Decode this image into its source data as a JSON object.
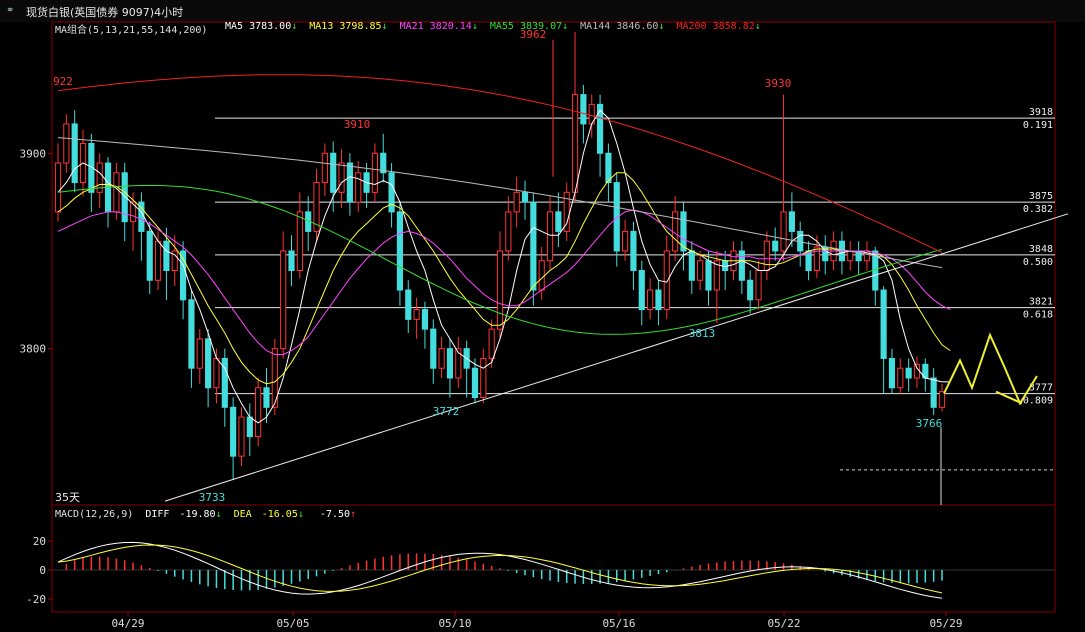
{
  "window": {
    "title": "现货白银(英国债券 9097)4小时",
    "logo_icon": "chain-link-icon"
  },
  "ma_legend": {
    "group_label": "MA组合(5,13,21,55,144,200)",
    "items": [
      {
        "name": "MA5",
        "value": "3783.00",
        "arrow": "↓",
        "color": "#ffffff"
      },
      {
        "name": "MA13",
        "value": "3798.85",
        "arrow": "↓",
        "color": "#ffff33"
      },
      {
        "name": "MA21",
        "value": "3820.14",
        "arrow": "↓",
        "color": "#ff44ff"
      },
      {
        "name": "MA55",
        "value": "3839.07",
        "arrow": "↓",
        "color": "#33dd33"
      },
      {
        "name": "MA144",
        "value": "3846.60",
        "arrow": "↓",
        "color": "#bbbbbb"
      },
      {
        "name": "MA200",
        "value": "3858.82",
        "arrow": "↓",
        "color": "#ee2222"
      }
    ]
  },
  "period_label": "35天",
  "macd_legend": {
    "label": "MACD(12,26,9)",
    "diff_label": "DIFF",
    "diff_value": "-19.80",
    "diff_arrow": "↓",
    "dea_label": "DEA",
    "dea_value": "-16.05",
    "dea_arrow": "↓",
    "macd_value": "-7.50",
    "macd_arrow": "↑"
  },
  "chart_data": {
    "type": "candlestick",
    "y_ticks": [
      3800,
      3900
    ],
    "ylim": [
      3720,
      3960
    ],
    "x_ticks": [
      "04/29",
      "05/05",
      "05/10",
      "05/16",
      "05/22",
      "05/29"
    ],
    "fib_levels": [
      {
        "price": 3918,
        "ratio": "0.191"
      },
      {
        "price": 3875,
        "ratio": "0.382"
      },
      {
        "price": 3848,
        "ratio": "0.500"
      },
      {
        "price": 3821,
        "ratio": "0.618"
      },
      {
        "price": 3777,
        "ratio": "0.809"
      }
    ],
    "annotations": [
      {
        "text": "922",
        "color": "#ff3333"
      },
      {
        "text": "3910",
        "color": "#ff3333"
      },
      {
        "text": "3962",
        "color": "#ff3333"
      },
      {
        "text": "3930",
        "color": "#ff3333"
      },
      {
        "text": "3733",
        "color": "#44dddd"
      },
      {
        "text": "3772",
        "color": "#44dddd"
      },
      {
        "text": "3813",
        "color": "#44dddd"
      },
      {
        "text": "3766",
        "color": "#44dddd"
      }
    ],
    "candles": [
      [
        3870,
        3895,
        3905,
        3865
      ],
      [
        3895,
        3915,
        3920,
        3890
      ],
      [
        3915,
        3885,
        3922,
        3880
      ],
      [
        3885,
        3905,
        3912,
        3878
      ],
      [
        3905,
        3880,
        3910,
        3870
      ],
      [
        3880,
        3895,
        3900,
        3872
      ],
      [
        3895,
        3870,
        3898,
        3862
      ],
      [
        3870,
        3890,
        3895,
        3866
      ],
      [
        3890,
        3865,
        3895,
        3855
      ],
      [
        3865,
        3875,
        3880,
        3850
      ],
      [
        3875,
        3860,
        3880,
        3845
      ],
      [
        3860,
        3835,
        3865,
        3828
      ],
      [
        3835,
        3855,
        3860,
        3830
      ],
      [
        3855,
        3840,
        3862,
        3825
      ],
      [
        3840,
        3850,
        3858,
        3832
      ],
      [
        3850,
        3825,
        3855,
        3815
      ],
      [
        3825,
        3790,
        3830,
        3780
      ],
      [
        3790,
        3805,
        3810,
        3782
      ],
      [
        3805,
        3780,
        3810,
        3770
      ],
      [
        3780,
        3795,
        3800,
        3772
      ],
      [
        3795,
        3770,
        3800,
        3760
      ],
      [
        3770,
        3745,
        3775,
        3733
      ],
      [
        3745,
        3765,
        3770,
        3740
      ],
      [
        3765,
        3755,
        3772,
        3745
      ],
      [
        3755,
        3780,
        3785,
        3750
      ],
      [
        3780,
        3770,
        3790,
        3762
      ],
      [
        3770,
        3800,
        3805,
        3766
      ],
      [
        3800,
        3850,
        3860,
        3795
      ],
      [
        3850,
        3840,
        3858,
        3832
      ],
      [
        3840,
        3870,
        3880,
        3836
      ],
      [
        3870,
        3860,
        3878,
        3850
      ],
      [
        3860,
        3885,
        3892,
        3855
      ],
      [
        3885,
        3900,
        3905,
        3878
      ],
      [
        3900,
        3880,
        3906,
        3870
      ],
      [
        3880,
        3895,
        3902,
        3872
      ],
      [
        3895,
        3875,
        3900,
        3868
      ],
      [
        3875,
        3890,
        3896,
        3870
      ],
      [
        3890,
        3880,
        3895,
        3872
      ],
      [
        3880,
        3900,
        3905,
        3875
      ],
      [
        3900,
        3890,
        3910,
        3885
      ],
      [
        3890,
        3870,
        3895,
        3862
      ],
      [
        3870,
        3830,
        3875,
        3822
      ],
      [
        3830,
        3815,
        3835,
        3808
      ],
      [
        3815,
        3820,
        3826,
        3805
      ],
      [
        3820,
        3810,
        3824,
        3800
      ],
      [
        3810,
        3790,
        3815,
        3782
      ],
      [
        3790,
        3800,
        3806,
        3785
      ],
      [
        3800,
        3785,
        3805,
        3775
      ],
      [
        3785,
        3800,
        3806,
        3780
      ],
      [
        3800,
        3790,
        3804,
        3775
      ],
      [
        3790,
        3775,
        3795,
        3772
      ],
      [
        3775,
        3795,
        3800,
        3772
      ],
      [
        3795,
        3810,
        3815,
        3790
      ],
      [
        3810,
        3850,
        3860,
        3805
      ],
      [
        3850,
        3870,
        3878,
        3845
      ],
      [
        3870,
        3880,
        3888,
        3862
      ],
      [
        3880,
        3875,
        3886,
        3866
      ],
      [
        3875,
        3830,
        3880,
        3822
      ],
      [
        3830,
        3845,
        3852,
        3825
      ],
      [
        3845,
        3870,
        3878,
        3840
      ],
      [
        3870,
        3860,
        3880,
        3852
      ],
      [
        3860,
        3880,
        3885,
        3855
      ],
      [
        3880,
        3930,
        3962,
        3875
      ],
      [
        3930,
        3915,
        3935,
        3905
      ],
      [
        3915,
        3925,
        3930,
        3908
      ],
      [
        3925,
        3900,
        3930,
        3888
      ],
      [
        3900,
        3885,
        3905,
        3875
      ],
      [
        3885,
        3850,
        3890,
        3842
      ],
      [
        3850,
        3860,
        3866,
        3845
      ],
      [
        3860,
        3840,
        3865,
        3830
      ],
      [
        3840,
        3820,
        3845,
        3812
      ],
      [
        3820,
        3830,
        3836,
        3815
      ],
      [
        3830,
        3820,
        3835,
        3812
      ],
      [
        3820,
        3850,
        3858,
        3815
      ],
      [
        3850,
        3870,
        3878,
        3845
      ],
      [
        3870,
        3850,
        3875,
        3840
      ],
      [
        3850,
        3835,
        3855,
        3828
      ],
      [
        3835,
        3845,
        3850,
        3830
      ],
      [
        3845,
        3830,
        3850,
        3822
      ],
      [
        3830,
        3845,
        3850,
        3813
      ],
      [
        3845,
        3840,
        3850,
        3830
      ],
      [
        3840,
        3850,
        3855,
        3835
      ],
      [
        3850,
        3835,
        3855,
        3828
      ],
      [
        3835,
        3825,
        3840,
        3818
      ],
      [
        3825,
        3840,
        3845,
        3820
      ],
      [
        3840,
        3855,
        3860,
        3835
      ],
      [
        3855,
        3850,
        3862,
        3845
      ],
      [
        3850,
        3870,
        3930,
        3845
      ],
      [
        3870,
        3860,
        3880,
        3852
      ],
      [
        3860,
        3850,
        3865,
        3842
      ],
      [
        3850,
        3840,
        3855,
        3835
      ],
      [
        3840,
        3852,
        3858,
        3836
      ],
      [
        3852,
        3845,
        3858,
        3838
      ],
      [
        3845,
        3855,
        3860,
        3840
      ],
      [
        3855,
        3845,
        3860,
        3838
      ],
      [
        3845,
        3850,
        3855,
        3840
      ],
      [
        3850,
        3845,
        3855,
        3838
      ],
      [
        3845,
        3850,
        3855,
        3840
      ],
      [
        3850,
        3830,
        3852,
        3822
      ],
      [
        3830,
        3795,
        3832,
        3777
      ],
      [
        3795,
        3780,
        3800,
        3777
      ],
      [
        3780,
        3790,
        3795,
        3777
      ],
      [
        3790,
        3785,
        3795,
        3778
      ],
      [
        3785,
        3792,
        3796,
        3780
      ],
      [
        3792,
        3785,
        3795,
        3778
      ],
      [
        3785,
        3770,
        3790,
        3766
      ],
      [
        3770,
        3778,
        3782,
        3768
      ]
    ],
    "ma_series": {
      "MA5": [
        3880,
        3885,
        3892,
        3895,
        3893,
        3890,
        3885,
        3882,
        3878,
        3874,
        3870,
        3862,
        3855,
        3850,
        3848,
        3843,
        3830,
        3820,
        3808,
        3795,
        3790,
        3780,
        3772,
        3765,
        3762,
        3765,
        3772,
        3785,
        3802,
        3820,
        3840,
        3855,
        3868,
        3878,
        3885,
        3888,
        3887,
        3885,
        3884,
        3886,
        3884,
        3875,
        3862,
        3850,
        3840,
        3825,
        3812,
        3805,
        3798,
        3795,
        3792,
        3790,
        3793,
        3805,
        3820,
        3840,
        3856,
        3862,
        3860,
        3858,
        3858,
        3864,
        3880,
        3900,
        3915,
        3922,
        3918,
        3905,
        3890,
        3872,
        3855,
        3843,
        3835,
        3834,
        3842,
        3848,
        3850,
        3848,
        3845,
        3843,
        3842,
        3843,
        3845,
        3843,
        3840,
        3840,
        3842,
        3848,
        3855,
        3858,
        3858,
        3855,
        3850,
        3848,
        3849,
        3850,
        3850,
        3849,
        3848,
        3845,
        3835,
        3815,
        3800,
        3790,
        3785,
        3784,
        3783,
        3783
      ],
      "MA13": [
        3870,
        3873,
        3877,
        3880,
        3882,
        3884,
        3884,
        3883,
        3880,
        3876,
        3872,
        3867,
        3862,
        3857,
        3852,
        3846,
        3838,
        3830,
        3822,
        3815,
        3808,
        3800,
        3793,
        3788,
        3784,
        3782,
        3783,
        3787,
        3793,
        3800,
        3810,
        3820,
        3830,
        3840,
        3848,
        3855,
        3860,
        3864,
        3868,
        3872,
        3874,
        3872,
        3868,
        3862,
        3856,
        3850,
        3843,
        3836,
        3830,
        3825,
        3820,
        3815,
        3812,
        3812,
        3815,
        3820,
        3826,
        3832,
        3836,
        3840,
        3843,
        3847,
        3855,
        3864,
        3872,
        3880,
        3886,
        3890,
        3890,
        3886,
        3880,
        3873,
        3866,
        3860,
        3856,
        3852,
        3850,
        3848,
        3847,
        3846,
        3845,
        3845,
        3845,
        3845,
        3844,
        3843,
        3843,
        3844,
        3846,
        3848,
        3850,
        3851,
        3851,
        3851,
        3850,
        3850,
        3850,
        3850,
        3849,
        3847,
        3843,
        3837,
        3830,
        3822,
        3815,
        3808,
        3802,
        3799
      ],
      "MA21": [
        3860,
        3862,
        3864,
        3866,
        3868,
        3869,
        3870,
        3870,
        3869,
        3868,
        3866,
        3864,
        3861,
        3858,
        3855,
        3852,
        3848,
        3843,
        3838,
        3832,
        3826,
        3820,
        3814,
        3808,
        3803,
        3799,
        3797,
        3797,
        3799,
        3802,
        3806,
        3812,
        3818,
        3824,
        3830,
        3836,
        3841,
        3846,
        3850,
        3854,
        3857,
        3859,
        3860,
        3859,
        3857,
        3854,
        3850,
        3846,
        3841,
        3836,
        3832,
        3828,
        3825,
        3823,
        3822,
        3822,
        3824,
        3827,
        3830,
        3833,
        3836,
        3839,
        3843,
        3848,
        3853,
        3858,
        3863,
        3867,
        3870,
        3871,
        3870,
        3868,
        3865,
        3862,
        3859,
        3856,
        3854,
        3852,
        3850,
        3849,
        3848,
        3847,
        3847,
        3847,
        3846,
        3846,
        3846,
        3846,
        3847,
        3848,
        3849,
        3850,
        3850,
        3850,
        3850,
        3850,
        3850,
        3850,
        3849,
        3848,
        3846,
        3843,
        3839,
        3834,
        3829,
        3825,
        3822,
        3820
      ]
    }
  }
}
